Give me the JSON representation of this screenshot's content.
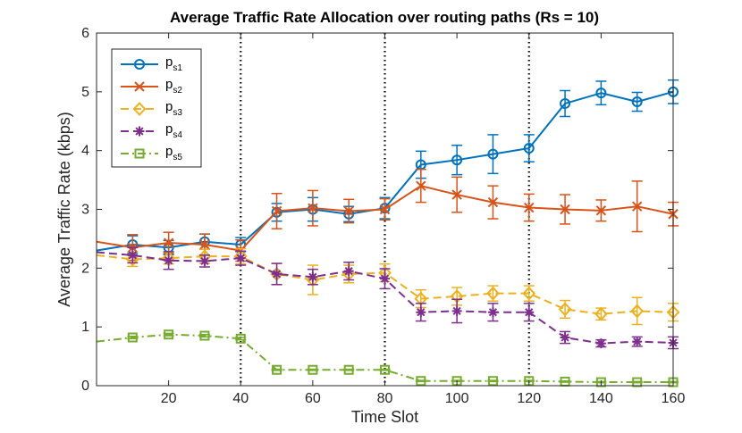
{
  "chart_data": {
    "type": "line",
    "title": "Average Traffic Rate Allocation over routing paths (Rs = 10)",
    "xlabel": "Time Slot",
    "ylabel": "Average Traffic Rate (kbps)",
    "xlim": [
      0,
      160
    ],
    "ylim": [
      0,
      6
    ],
    "xticks": [
      20,
      40,
      60,
      80,
      100,
      120,
      140,
      160
    ],
    "yticks": [
      0,
      1,
      2,
      3,
      4,
      5,
      6
    ],
    "vlines": [
      40,
      80,
      120
    ],
    "grid": false,
    "legend_position": "top-left",
    "x": [
      0,
      10,
      20,
      30,
      40,
      50,
      60,
      70,
      80,
      90,
      100,
      110,
      120,
      130,
      140,
      150,
      160
    ],
    "series": [
      {
        "name": "p",
        "subscript": "s1",
        "color": "#0072BD",
        "marker": "circle",
        "dash": "solid",
        "values": [
          2.3,
          2.4,
          2.35,
          2.45,
          2.4,
          2.95,
          3.0,
          2.92,
          3.02,
          3.76,
          3.84,
          3.94,
          4.04,
          4.8,
          4.98,
          4.83,
          5.0
        ],
        "errors": [
          null,
          0.15,
          0.12,
          0.13,
          0.12,
          0.15,
          0.2,
          0.13,
          0.18,
          0.23,
          0.25,
          0.33,
          0.23,
          0.22,
          0.2,
          0.16,
          0.2
        ]
      },
      {
        "name": "p",
        "subscript": "s2",
        "color": "#D95319",
        "marker": "x",
        "dash": "solid",
        "values": [
          2.45,
          2.35,
          2.43,
          2.4,
          2.3,
          2.97,
          3.02,
          2.97,
          3.0,
          3.4,
          3.25,
          3.12,
          3.03,
          3.0,
          2.98,
          3.05,
          2.92
        ],
        "errors": [
          null,
          0.22,
          0.18,
          0.18,
          0.18,
          0.3,
          0.3,
          0.2,
          0.18,
          0.28,
          0.3,
          0.28,
          0.23,
          0.25,
          0.18,
          0.43,
          0.2
        ]
      },
      {
        "name": "p",
        "subscript": "s3",
        "color": "#EDB120",
        "marker": "diamond",
        "dash": "dashed",
        "values": [
          2.22,
          2.15,
          2.17,
          2.2,
          2.2,
          1.9,
          1.8,
          1.9,
          1.92,
          1.48,
          1.52,
          1.57,
          1.57,
          1.3,
          1.22,
          1.27,
          1.25
        ],
        "errors": [
          null,
          0.12,
          0.1,
          0.12,
          0.13,
          0.18,
          0.25,
          0.15,
          0.15,
          0.15,
          0.15,
          0.13,
          0.13,
          0.15,
          0.1,
          0.23,
          0.15
        ]
      },
      {
        "name": "p",
        "subscript": "s4",
        "color": "#7E2F8E",
        "marker": "asterisk",
        "dash": "dashed",
        "values": [
          2.27,
          2.22,
          2.13,
          2.12,
          2.17,
          1.9,
          1.85,
          1.95,
          1.82,
          1.25,
          1.27,
          1.25,
          1.25,
          0.82,
          0.72,
          0.75,
          0.73
        ],
        "errors": [
          null,
          0.13,
          0.15,
          0.1,
          0.12,
          0.18,
          0.13,
          0.15,
          0.17,
          0.15,
          0.2,
          0.15,
          0.15,
          0.1,
          0.06,
          0.08,
          0.1
        ]
      },
      {
        "name": "p",
        "subscript": "s5",
        "color": "#77AC30",
        "marker": "square",
        "dash": "dashdot",
        "values": [
          0.75,
          0.82,
          0.87,
          0.85,
          0.8,
          0.27,
          0.27,
          0.27,
          0.27,
          0.08,
          0.08,
          0.08,
          0.08,
          0.07,
          0.06,
          0.06,
          0.06
        ],
        "errors": [
          null,
          0.02,
          0.02,
          0.02,
          0.02,
          0.01,
          0.01,
          0.01,
          0.01,
          0.01,
          0.01,
          0.01,
          0.01,
          0.01,
          0.01,
          0.01,
          0.01
        ]
      }
    ]
  }
}
